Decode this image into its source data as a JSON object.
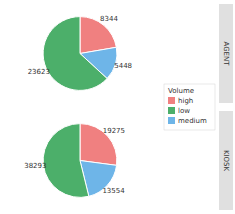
{
  "chart_data": [
    {
      "type": "pie",
      "title": "AGENT",
      "categories": [
        "high",
        "medium",
        "low"
      ],
      "values": [
        8344,
        5448,
        23623
      ],
      "colors": [
        "#F08080",
        "#6EB5E8",
        "#4CAF6A"
      ],
      "data_labels": true,
      "legend": "right",
      "legend_title": "Volume",
      "legend_entries": [
        {
          "name": "high",
          "color": "#F08080"
        },
        {
          "name": "low",
          "color": "#4CAF6A"
        },
        {
          "name": "medium",
          "color": "#6EB5E8"
        }
      ]
    },
    {
      "type": "pie",
      "title": "KIOSK",
      "categories": [
        "high",
        "medium",
        "low"
      ],
      "values": [
        19275,
        13554,
        38293
      ],
      "colors": [
        "#F08080",
        "#6EB5E8",
        "#4CAF6A"
      ],
      "data_labels": true
    }
  ]
}
